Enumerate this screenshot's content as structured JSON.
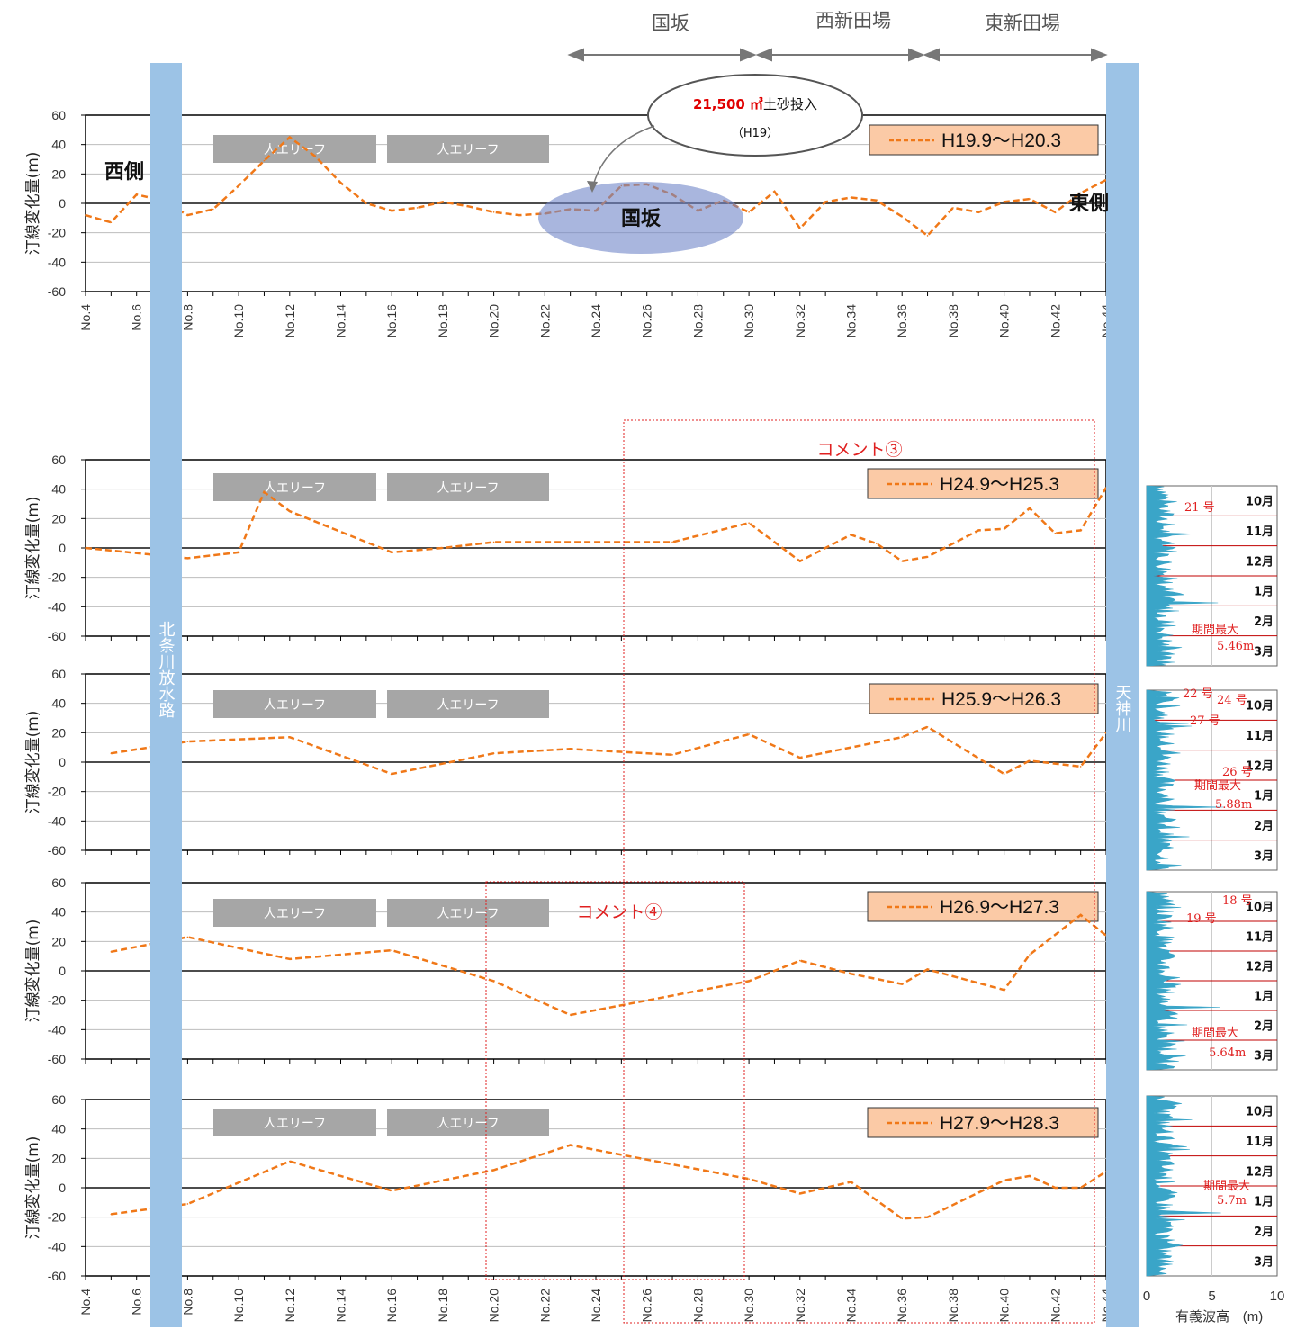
{
  "regions": [
    {
      "label": "国坂",
      "from": "No.23",
      "to": "No.30"
    },
    {
      "label": "西新田場",
      "from": "No.30",
      "to": "No.37"
    },
    {
      "label": "東新田場",
      "from": "No.37",
      "to": "No.44"
    }
  ],
  "rivers": {
    "west": "北条川放水路",
    "east": "天神川"
  },
  "reef_label": "人エリーフ",
  "callout": {
    "volume": "21,500 ㎥",
    "text": "土砂投入",
    "sub": "（H19）",
    "target": "国坂"
  },
  "side_labels": {
    "west": "西側",
    "east": "東側"
  },
  "comments": [
    "コメント③",
    "コメント④"
  ],
  "colors": {
    "series": "#f07818",
    "river": "#9cc3e6",
    "reef": "#a6a6a6",
    "legend_bg": "#fbcaa6",
    "comment": "#e02020",
    "wave": "#3aa5c8"
  },
  "chart_data": [
    {
      "type": "line",
      "series_name": "H19.9〜H20.3",
      "ylabel": "汀線変化量(m)",
      "ylim": [
        -60,
        60
      ],
      "yticks": [
        "60",
        "40",
        "20",
        "0",
        "-20",
        "-40",
        "-60"
      ],
      "xlabels": [
        "No.4",
        "No.6",
        "No.8",
        "No.10",
        "No.12",
        "No.14",
        "No.16",
        "No.18",
        "No.20",
        "No.22",
        "No.24",
        "No.26",
        "No.28",
        "No.30",
        "No.32",
        "No.34",
        "No.36",
        "No.38",
        "No.40",
        "No.42",
        "No.44"
      ],
      "points": [
        [
          4,
          -8
        ],
        [
          5,
          -13
        ],
        [
          6,
          6
        ],
        [
          7,
          2
        ],
        [
          8,
          -8
        ],
        [
          9,
          -4
        ],
        [
          10,
          12
        ],
        [
          11,
          29
        ],
        [
          12,
          45
        ],
        [
          13,
          32
        ],
        [
          14,
          14
        ],
        [
          15,
          0
        ],
        [
          16,
          -5
        ],
        [
          17,
          -3
        ],
        [
          18,
          1
        ],
        [
          19,
          -2
        ],
        [
          20,
          -6
        ],
        [
          21,
          -8
        ],
        [
          22,
          -7
        ],
        [
          23,
          -4
        ],
        [
          24,
          -5
        ],
        [
          25,
          12
        ],
        [
          26,
          13
        ],
        [
          27,
          6
        ],
        [
          28,
          -5
        ],
        [
          29,
          2
        ],
        [
          30,
          -6
        ],
        [
          31,
          8
        ],
        [
          32,
          -17
        ],
        [
          33,
          1
        ],
        [
          34,
          4
        ],
        [
          35,
          2
        ],
        [
          36,
          -9
        ],
        [
          37,
          -22
        ],
        [
          38,
          -3
        ],
        [
          39,
          -6
        ],
        [
          40,
          1
        ],
        [
          41,
          3
        ],
        [
          42,
          -6
        ],
        [
          43,
          7
        ],
        [
          44,
          16
        ]
      ]
    },
    {
      "type": "line",
      "series_name": "H24.9〜H25.3",
      "ylabel": "汀線変化量(m)",
      "ylim": [
        -60,
        60
      ],
      "yticks": [
        "60",
        "40",
        "20",
        "0",
        "-20",
        "-40",
        "-60"
      ],
      "points": [
        [
          4,
          0
        ],
        [
          8,
          -7
        ],
        [
          10,
          -3
        ],
        [
          11,
          38
        ],
        [
          12,
          25
        ],
        [
          16,
          -3
        ],
        [
          18,
          0
        ],
        [
          20,
          4
        ],
        [
          27,
          4
        ],
        [
          30,
          17
        ],
        [
          32,
          -9
        ],
        [
          34,
          9
        ],
        [
          35,
          3
        ],
        [
          36,
          -9
        ],
        [
          37,
          -6
        ],
        [
          39,
          12
        ],
        [
          40,
          13
        ],
        [
          41,
          27
        ],
        [
          42,
          10
        ],
        [
          43,
          12
        ],
        [
          44,
          41
        ]
      ]
    },
    {
      "type": "line",
      "series_name": "H25.9〜H26.3",
      "ylabel": "汀線変化量(m)",
      "ylim": [
        -60,
        60
      ],
      "yticks": [
        "60",
        "40",
        "20",
        "0",
        "-20",
        "-40",
        "-60"
      ],
      "points": [
        [
          5,
          6
        ],
        [
          8,
          14
        ],
        [
          12,
          17
        ],
        [
          16,
          -8
        ],
        [
          20,
          6
        ],
        [
          23,
          9
        ],
        [
          27,
          5
        ],
        [
          30,
          19
        ],
        [
          32,
          3
        ],
        [
          36,
          17
        ],
        [
          37,
          24
        ],
        [
          40,
          -8
        ],
        [
          41,
          1
        ],
        [
          43,
          -3
        ],
        [
          44,
          20
        ]
      ]
    },
    {
      "type": "line",
      "series_name": "H26.9〜H27.3",
      "ylabel": "汀線変化量(m)",
      "ylim": [
        -60,
        60
      ],
      "yticks": [
        "60",
        "40",
        "20",
        "0",
        "-20",
        "-40",
        "-60"
      ],
      "points": [
        [
          5,
          13
        ],
        [
          8,
          23
        ],
        [
          12,
          8
        ],
        [
          16,
          14
        ],
        [
          20,
          -7
        ],
        [
          23,
          -30
        ],
        [
          30,
          -7
        ],
        [
          32,
          7
        ],
        [
          34,
          -2
        ],
        [
          36,
          -9
        ],
        [
          37,
          1
        ],
        [
          40,
          -13
        ],
        [
          41,
          11
        ],
        [
          43,
          38
        ],
        [
          44,
          24
        ]
      ]
    },
    {
      "type": "line",
      "series_name": "H27.9〜H28.3",
      "ylabel": "汀線変化量(m)",
      "ylim": [
        -60,
        60
      ],
      "yticks": [
        "60",
        "40",
        "20",
        "0",
        "-20",
        "-40",
        "-60"
      ],
      "xlabels": [
        "No.4",
        "No.6",
        "No.8",
        "No.10",
        "No.12",
        "No.14",
        "No.16",
        "No.18",
        "No.20",
        "No.22",
        "No.24",
        "No.26",
        "No.28",
        "No.30",
        "No.32",
        "No.34",
        "No.36",
        "No.38",
        "No.40",
        "No.42",
        "No.44"
      ],
      "points": [
        [
          5,
          -18
        ],
        [
          8,
          -11
        ],
        [
          12,
          18
        ],
        [
          16,
          -2
        ],
        [
          20,
          12
        ],
        [
          23,
          29
        ],
        [
          30,
          6
        ],
        [
          32,
          -4
        ],
        [
          34,
          4
        ],
        [
          36,
          -21
        ],
        [
          37,
          -20
        ],
        [
          40,
          5
        ],
        [
          41,
          8
        ],
        [
          42,
          0
        ],
        [
          43,
          0
        ],
        [
          44,
          11
        ]
      ]
    }
  ],
  "wave_panels": {
    "months": [
      "10月",
      "11月",
      "12月",
      "1月",
      "2月",
      "3月"
    ],
    "xlabel": "有義波高",
    "xunit": "(m)",
    "xticks": [
      "0",
      "5",
      "10"
    ],
    "panels": [
      {
        "annotations": [
          "21 号",
          "期間最大",
          "5.46m"
        ]
      },
      {
        "annotations": [
          "22 号",
          "24 号",
          "27 号",
          "26 号",
          "期間最大",
          "5.88m"
        ]
      },
      {
        "annotations": [
          "18 号",
          "19 号",
          "期間最大",
          "5.64m"
        ]
      },
      {
        "annotations": [
          "期間最大",
          "5.7m"
        ]
      }
    ]
  }
}
